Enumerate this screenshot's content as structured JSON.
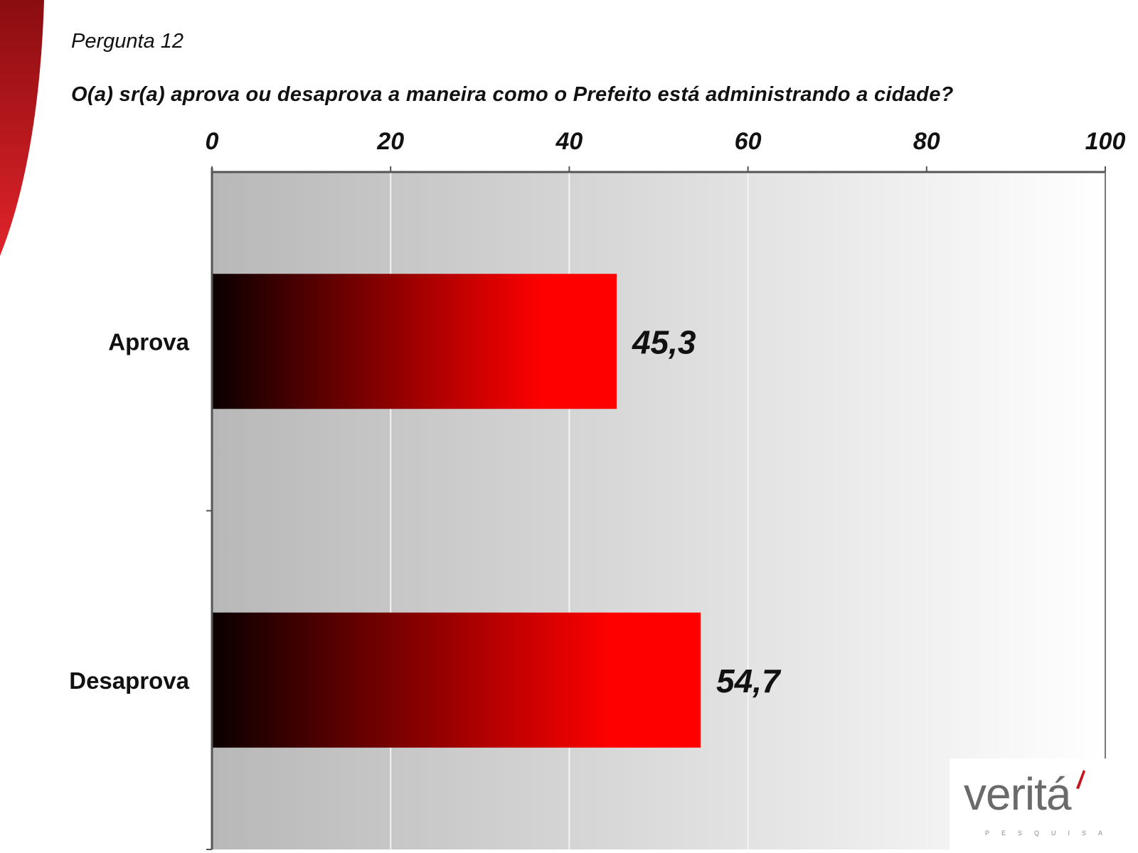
{
  "header": {
    "question_number": "Pergunta 12",
    "question_text": "O(a) sr(a) aprova ou desaprova a maneira como o Prefeito está administrando a cidade?"
  },
  "chart_data": {
    "type": "bar",
    "orientation": "horizontal",
    "categories": [
      "Aprova",
      "Desaprova"
    ],
    "values": [
      45.3,
      54.7
    ],
    "value_labels": [
      "45,3",
      "54,7"
    ],
    "xlim": [
      0,
      100
    ],
    "ticks": [
      0,
      20,
      40,
      60,
      80,
      100
    ],
    "tick_labels": [
      "0",
      "20",
      "40",
      "60",
      "80",
      "100"
    ],
    "x_axis_position": "top",
    "grid": true,
    "colors": {
      "bar_start": "#0a0000",
      "bar_end": "#ff0000",
      "plot_bg_left": "#b8b8b8",
      "plot_bg_right": "#ffffff"
    }
  },
  "logo": {
    "brand": "veritá",
    "tagline": "PESQUISA"
  },
  "decor": {
    "swoosh_color": "#c4161c"
  }
}
